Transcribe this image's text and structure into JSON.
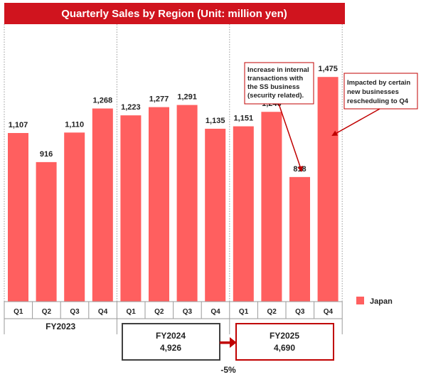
{
  "chart_data": {
    "type": "bar",
    "title": "Quarterly Sales by Region (Unit: million yen)",
    "fiscal_years": [
      {
        "label": "FY2023",
        "quarters": [
          "Q1",
          "Q2",
          "Q3",
          "Q4"
        ],
        "values": [
          1107,
          916,
          1110,
          1268
        ],
        "value_labels": [
          "1,107",
          "916",
          "1,110",
          "1,268"
        ]
      },
      {
        "label": "FY2024",
        "quarters": [
          "Q1",
          "Q2",
          "Q3",
          "Q4"
        ],
        "values": [
          1223,
          1277,
          1291,
          1135
        ],
        "value_labels": [
          "1,223",
          "1,277",
          "1,291",
          "1,135"
        ]
      },
      {
        "label": "FY2025",
        "quarters": [
          "Q1",
          "Q2",
          "Q3",
          "Q4"
        ],
        "values": [
          1151,
          1246,
          818,
          1475
        ],
        "value_labels": [
          "1,151",
          "1,246",
          "818",
          "1,475"
        ]
      }
    ],
    "series": [
      {
        "name": "Japan",
        "color": "#ff5f5f"
      }
    ],
    "ylim": [
      0,
      1700
    ],
    "grid": false,
    "legend_position": "right",
    "annotations": [
      {
        "target": "FY2025 Q3",
        "lines": [
          "Increase in internal",
          "transactions with",
          "the SS business",
          "(security related)."
        ]
      },
      {
        "target": "FY2025 Q4",
        "lines": [
          "Impacted by certain",
          "new businesses",
          "rescheduling to Q4"
        ]
      }
    ],
    "totals": [
      {
        "label": "FY2024",
        "value": "4,926"
      },
      {
        "label": "FY2025",
        "value": "4,690"
      }
    ],
    "change_label": "-5%"
  },
  "colors": {
    "title_bg": "#d0141e",
    "bar": "#ff5f5f",
    "accent_red": "#c00000",
    "grid": "#9a9a9a",
    "box_dark": "#404040"
  }
}
